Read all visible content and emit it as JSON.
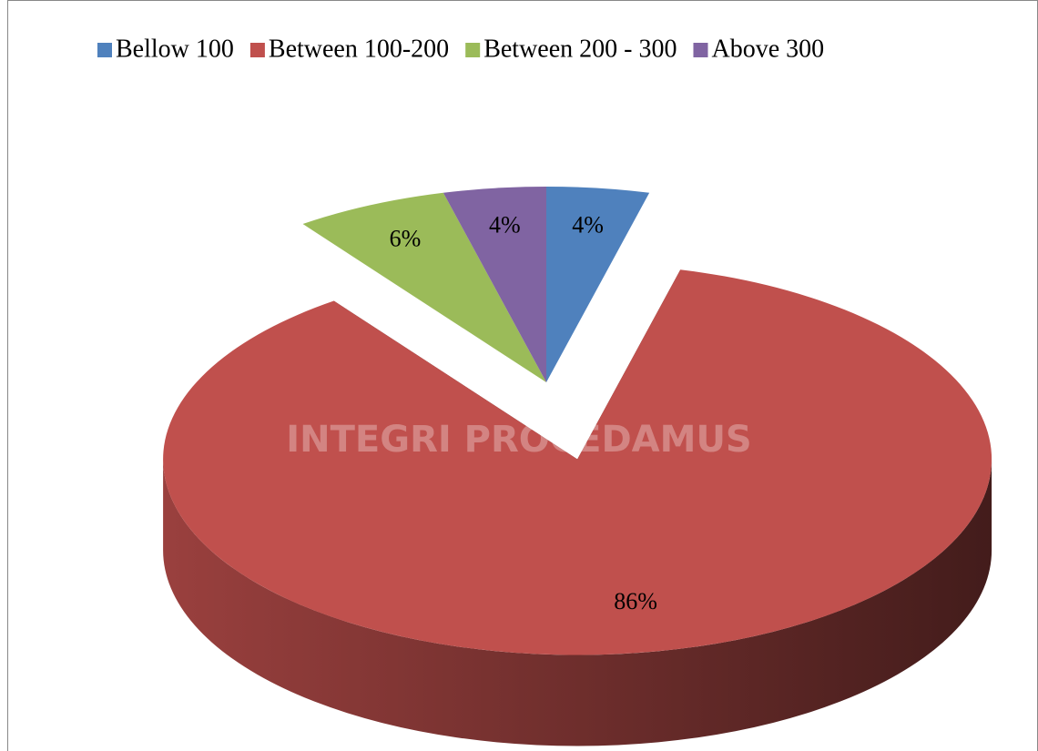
{
  "chart_data": {
    "type": "pie3d",
    "categories": [
      "Bellow 100",
      "Between 100-200",
      "Between 200 - 300",
      "Above 300"
    ],
    "values": [
      4,
      86,
      6,
      4
    ],
    "value_labels": [
      "4%",
      "86%",
      "6%",
      "4%"
    ],
    "colors": [
      "#4f81bd",
      "#c0504d",
      "#9bbb59",
      "#8064a2"
    ],
    "legend": "top",
    "watermark": "INTEGRI PROCEDAMUS"
  }
}
